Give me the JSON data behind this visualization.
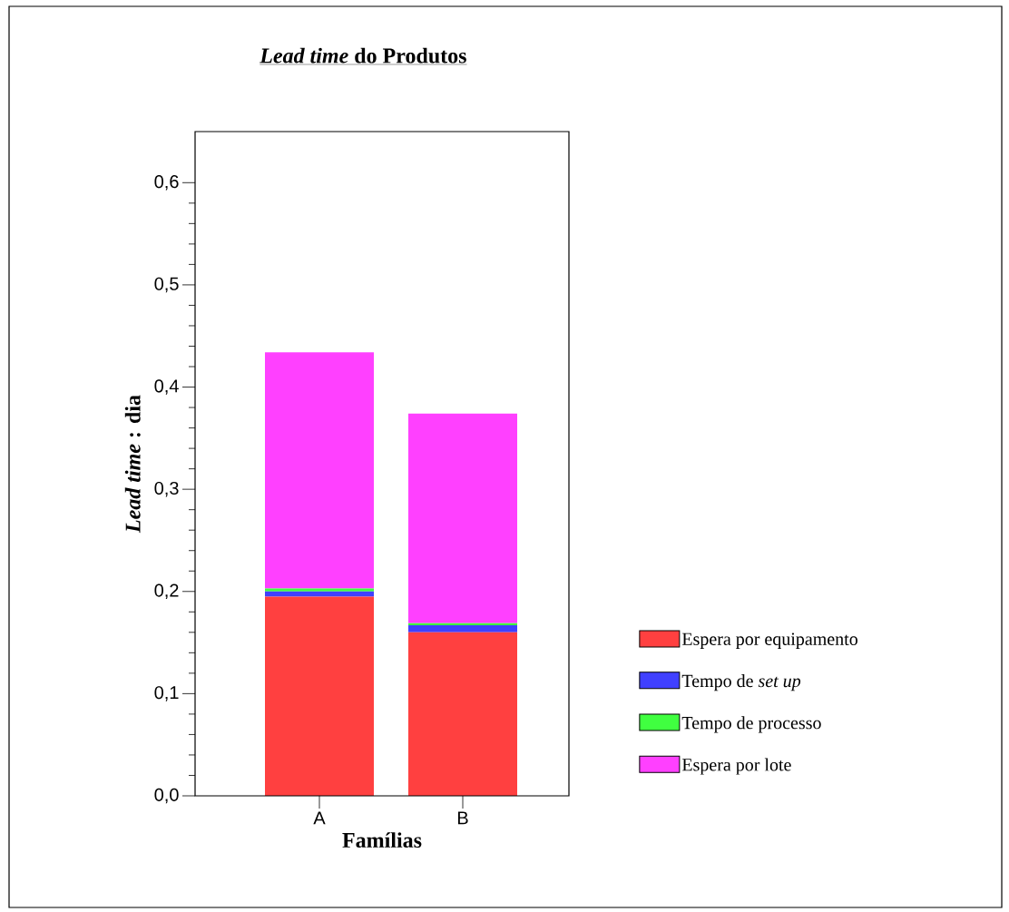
{
  "chart_data": {
    "type": "bar",
    "stacked": true,
    "title": "*Lead time* do Produtos",
    "xlabel": "Famílias",
    "ylabel": "*Lead time* : dia",
    "categories": [
      "A",
      "B"
    ],
    "series": [
      {
        "name": "Espera por equipamento",
        "color": "#ff4040",
        "values": [
          0.195,
          0.16
        ]
      },
      {
        "name": "Tempo de *set up*",
        "color": "#4040ff",
        "values": [
          0.005,
          0.007
        ]
      },
      {
        "name": "Tempo de processo",
        "color": "#40ff40",
        "values": [
          0.003,
          0.002
        ]
      },
      {
        "name": "Espera por lote",
        "color": "#ff40ff",
        "values": [
          0.231,
          0.205
        ]
      }
    ],
    "ylim": [
      0,
      0.65
    ],
    "yticks": [
      {
        "value": 0,
        "label": "0,0"
      },
      {
        "value": 0.1,
        "label": "0,1"
      },
      {
        "value": 0.2,
        "label": "0,2"
      },
      {
        "value": 0.3,
        "label": "0,3"
      },
      {
        "value": 0.4,
        "label": "0,4"
      },
      {
        "value": 0.5,
        "label": "0,5"
      },
      {
        "value": 0.6,
        "label": "0,6"
      }
    ],
    "legend": "right",
    "grid": false
  }
}
